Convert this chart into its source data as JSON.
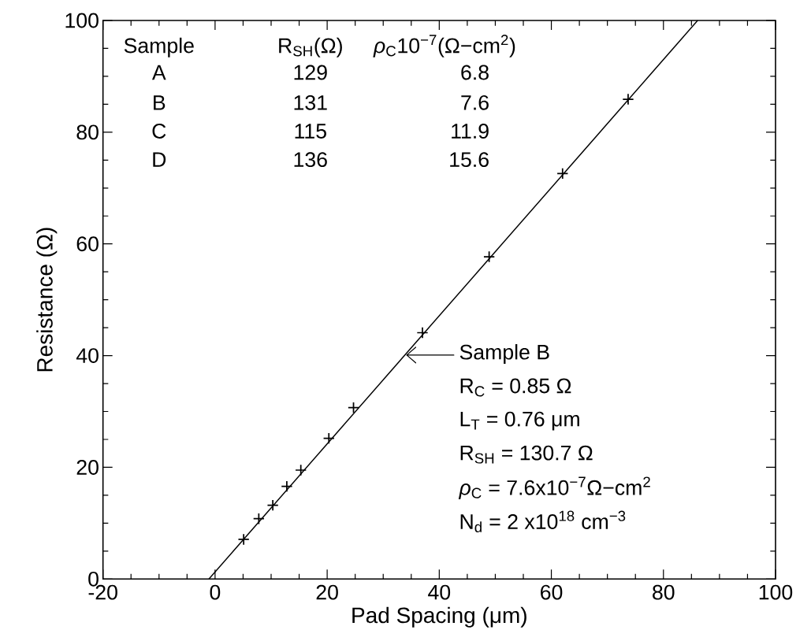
{
  "chart_data": {
    "type": "scatter",
    "xlabel": "Pad Spacing (μm)",
    "ylabel": "Resistance (Ω)",
    "xlim": [
      -20,
      100
    ],
    "ylim": [
      0,
      100
    ],
    "xticks": [
      -20,
      0,
      20,
      40,
      60,
      80,
      100
    ],
    "yticks": [
      0,
      20,
      40,
      60,
      80,
      100
    ],
    "marker": "cross",
    "series": [
      {
        "color": "#000000",
        "x": [
          5.1,
          7.8,
          10.3,
          12.8,
          15.3,
          20.3,
          24.7,
          37,
          48.9,
          62,
          73.7
        ],
        "values": [
          7.1,
          10.8,
          13.2,
          16.6,
          19.5,
          25.2,
          30.7,
          44.1,
          57.7,
          72.6,
          85.9
        ]
      },
      {
        "type": "line",
        "color": "#000000",
        "marker": "none",
        "x": [
          -1.1,
          86.1
        ],
        "values": [
          0,
          100
        ]
      }
    ],
    "annotations": [
      "Sample",
      "R$_{SH}$(Ω)",
      "*ρ*$_{C}$10$^{−7}$(Ω−cm$^{2}$)",
      "A",
      "129",
      "6.8",
      "B",
      "131",
      "7.6",
      "C",
      "115",
      "11.9",
      "D",
      "136",
      "15.6",
      {
        "text": "Sample B",
        "x": 34.2,
        "y": 40.1
      },
      "R$_{C}$ = 0.85 Ω",
      "L$_{T}$ = 0.76 μm",
      "R$_{SH}$ = 130.7 Ω",
      "*ρ*$_{C}$ = 7.6x10$^{−7}$Ω−cm$^{2}$",
      "N$_{d}$ = 2 x10$^{18}$ cm$^{−3}$"
    ]
  }
}
